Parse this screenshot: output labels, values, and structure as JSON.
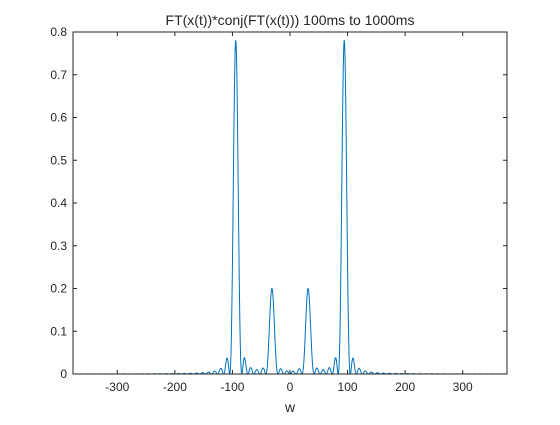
{
  "chart_data": {
    "type": "line",
    "title": "FT(x(t))*conj(FT(x(t))) 100ms to 1000ms",
    "xlabel": "w",
    "ylabel": "",
    "xlim": [
      -377,
      377
    ],
    "ylim": [
      0,
      0.8
    ],
    "xticks": [
      -300,
      -200,
      -100,
      0,
      100,
      200,
      300
    ],
    "yticks": [
      0,
      0.1,
      0.2,
      0.3,
      0.4,
      0.5,
      0.6,
      0.7,
      0.8
    ],
    "xtick_labels": [
      "-300",
      "-200",
      "-100",
      "0",
      "100",
      "200",
      "300"
    ],
    "ytick_labels": [
      "0",
      "0.1",
      "0.2",
      "0.3",
      "0.4",
      "0.5",
      "0.6",
      "0.7",
      "0.8"
    ],
    "grid": false,
    "legend": "none",
    "series_color": "#0072BD",
    "peaks": [
      {
        "center": -94.25,
        "height": 0.78
      },
      {
        "center": -31.42,
        "height": 0.2
      },
      {
        "center": 31.42,
        "height": 0.2
      },
      {
        "center": 94.25,
        "height": 0.78
      }
    ]
  }
}
